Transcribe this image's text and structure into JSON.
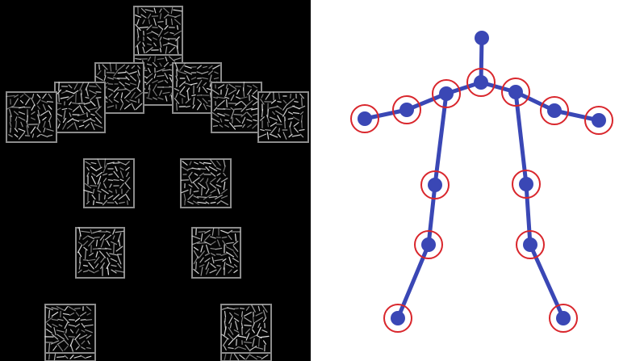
{
  "colors": {
    "hog_background": "#000000",
    "hog_cell_border": "#8c8c8c",
    "hog_stroke": "#e6e6e6",
    "skeleton_bone": "#3a47b5",
    "skeleton_joint": "#3a47b5",
    "part_circle": "#d9262c",
    "skeleton_background": "#ffffff"
  },
  "hog_parts": [
    {
      "name": "head-top-cell"
    },
    {
      "name": "head-cell"
    },
    {
      "name": "neck-left-cell"
    },
    {
      "name": "neck-right-cell"
    },
    {
      "name": "shoulder-left-cell"
    },
    {
      "name": "shoulder-right-cell"
    },
    {
      "name": "elbow-left-cell"
    },
    {
      "name": "elbow-right-cell"
    },
    {
      "name": "hand-left-cell"
    },
    {
      "name": "hand-right-cell"
    },
    {
      "name": "hip-left-cell"
    },
    {
      "name": "hip-right-cell"
    },
    {
      "name": "knee-left-cell"
    },
    {
      "name": "knee-right-cell"
    },
    {
      "name": "ankle-left-cell"
    },
    {
      "name": "ankle-right-cell"
    }
  ],
  "skeleton": {
    "joints": [
      "head",
      "neck",
      "left-shoulder",
      "right-shoulder",
      "left-elbow",
      "right-elbow",
      "left-wrist",
      "right-wrist",
      "left-hip",
      "right-hip",
      "left-knee",
      "right-knee",
      "left-ankle",
      "right-ankle"
    ],
    "bones": [
      [
        "head",
        "neck"
      ],
      [
        "neck",
        "left-shoulder"
      ],
      [
        "neck",
        "right-shoulder"
      ],
      [
        "left-shoulder",
        "left-elbow"
      ],
      [
        "left-elbow",
        "left-wrist"
      ],
      [
        "right-shoulder",
        "right-elbow"
      ],
      [
        "right-elbow",
        "right-wrist"
      ],
      [
        "left-shoulder",
        "left-hip"
      ],
      [
        "left-hip",
        "left-knee"
      ],
      [
        "left-knee",
        "left-ankle"
      ],
      [
        "right-shoulder",
        "right-hip"
      ],
      [
        "right-hip",
        "right-knee"
      ],
      [
        "right-knee",
        "right-ankle"
      ]
    ]
  }
}
